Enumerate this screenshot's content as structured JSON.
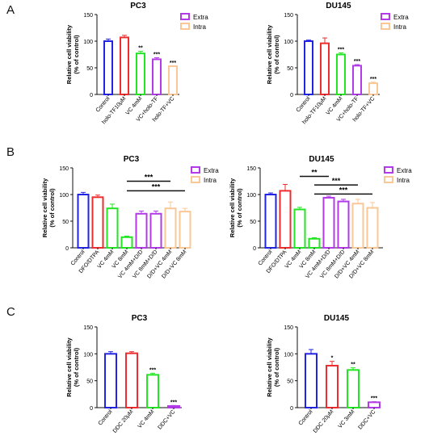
{
  "panels": [
    {
      "letter": "A"
    },
    {
      "letter": "B"
    },
    {
      "letter": "C"
    }
  ],
  "colors": {
    "blue": "#2323e6",
    "red": "#ee2e2e",
    "green": "#22e622",
    "purple": "#b23ae8",
    "orange": "#f9c896"
  },
  "chart_data": [
    {
      "type": "bar",
      "panel": "A",
      "title": "PC3",
      "ylabel": "Relative cell viability\n(% of control)",
      "xlabel": "",
      "ylim": [
        0,
        150
      ],
      "yticks": [
        0,
        50,
        100,
        150
      ],
      "categories": [
        "Control",
        "holo-TF10μM",
        "VC 4mM",
        "VC+holo-TF",
        "holo-TF+VC"
      ],
      "values": [
        100,
        107,
        77,
        66,
        53
      ],
      "errors": [
        4,
        4,
        4,
        3,
        0
      ],
      "bar_colors": [
        "blue",
        "red",
        "green",
        "purple",
        "orange"
      ],
      "significance": [
        "",
        "",
        "**",
        "***",
        "***"
      ],
      "legend": [
        {
          "label": "Extra",
          "color": "purple"
        },
        {
          "label": "Intra",
          "color": "orange"
        }
      ],
      "brackets": []
    },
    {
      "type": "bar",
      "panel": "A",
      "title": "DU145",
      "ylabel": "Relative cell viability\n(% of control)",
      "xlabel": "",
      "ylim": [
        0,
        150
      ],
      "yticks": [
        0,
        50,
        100,
        150
      ],
      "categories": [
        "Control",
        "holo-TF10μM",
        "VC 4mM",
        "VC+holo-TF",
        "holo-TF+VC"
      ],
      "values": [
        100,
        96,
        75,
        54,
        21
      ],
      "errors": [
        2,
        10,
        3,
        2,
        2
      ],
      "bar_colors": [
        "blue",
        "red",
        "green",
        "purple",
        "orange"
      ],
      "significance": [
        "",
        "",
        "***",
        "***",
        "***"
      ],
      "legend": [
        {
          "label": "Extra",
          "color": "purple"
        },
        {
          "label": "Intra",
          "color": "orange"
        }
      ],
      "brackets": []
    },
    {
      "type": "bar",
      "panel": "B",
      "title": "PC3",
      "ylabel": "Relative cell viability\n(% of control)",
      "xlabel": "",
      "ylim": [
        0,
        150
      ],
      "yticks": [
        0,
        50,
        100,
        150
      ],
      "categories": [
        "Control",
        "DFO/DTPA",
        "VC 4mM",
        "VC 8mM",
        "VC 4mM+D/D",
        "VC 8mM+D/D",
        "D/D+VC 4mM",
        "D/D+VC 8mM"
      ],
      "values": [
        100,
        95,
        74,
        20,
        64,
        64,
        74,
        68
      ],
      "errors": [
        4,
        4,
        8,
        2,
        5,
        5,
        12,
        6
      ],
      "bar_colors": [
        "blue",
        "red",
        "green",
        "green",
        "purple",
        "purple",
        "orange",
        "orange"
      ],
      "significance": [
        "",
        "",
        "",
        "",
        "",
        "",
        "",
        ""
      ],
      "legend": [
        {
          "label": "Extra",
          "color": "purple"
        },
        {
          "label": "Intra",
          "color": "orange"
        }
      ],
      "brackets": [
        {
          "from": 3,
          "to": 6,
          "y": 125,
          "label": "***"
        },
        {
          "from": 3,
          "to": 7,
          "y": 107,
          "label": "***"
        }
      ]
    },
    {
      "type": "bar",
      "panel": "B",
      "title": "DU145",
      "ylabel": "Relative cell viability\n(% of control)",
      "xlabel": "",
      "ylim": [
        0,
        150
      ],
      "yticks": [
        0,
        50,
        100,
        150
      ],
      "categories": [
        "Control",
        "DFO/DTPA",
        "VC 4mM",
        "VC 8mM",
        "VC 4mM+D/D",
        "VC 8mM+D/D",
        "D/D+VC 4mM",
        "D/D+VC 8mM"
      ],
      "values": [
        100,
        107,
        72,
        17,
        94,
        87,
        83,
        75
      ],
      "errors": [
        3,
        12,
        4,
        2,
        3,
        4,
        8,
        10
      ],
      "bar_colors": [
        "blue",
        "red",
        "green",
        "green",
        "purple",
        "purple",
        "orange",
        "orange"
      ],
      "significance": [
        "",
        "",
        "",
        "",
        "",
        "",
        "",
        ""
      ],
      "legend": [
        {
          "label": "Extra",
          "color": "purple"
        },
        {
          "label": "Intra",
          "color": "orange"
        }
      ],
      "brackets": [
        {
          "from": 2,
          "to": 4,
          "y": 134,
          "label": "**"
        },
        {
          "from": 3,
          "to": 6,
          "y": 118,
          "label": "***"
        },
        {
          "from": 3,
          "to": 7,
          "y": 101,
          "label": "***"
        }
      ]
    },
    {
      "type": "bar",
      "panel": "C",
      "title": "PC3",
      "ylabel": "Relative cell viability\n(% of control)",
      "xlabel": "",
      "ylim": [
        0,
        150
      ],
      "yticks": [
        0,
        50,
        100,
        150
      ],
      "categories": [
        "Control",
        "DDC 20μM",
        "VC 4mM",
        "DDC+VC"
      ],
      "values": [
        100,
        101,
        61,
        3
      ],
      "errors": [
        4,
        3,
        3,
        1
      ],
      "bar_colors": [
        "blue",
        "red",
        "green",
        "purple"
      ],
      "significance": [
        "",
        "",
        "***",
        "***"
      ],
      "legend": [],
      "brackets": []
    },
    {
      "type": "bar",
      "panel": "C",
      "title": "DU145",
      "ylabel": "Relative cell viability\n(% of control)",
      "xlabel": "",
      "ylim": [
        0,
        150
      ],
      "yticks": [
        0,
        50,
        100,
        150
      ],
      "categories": [
        "Control",
        "DDC 20μM",
        "VC 3mM",
        "DDC+VC"
      ],
      "values": [
        100,
        78,
        70,
        10
      ],
      "errors": [
        8,
        8,
        4,
        1
      ],
      "bar_colors": [
        "blue",
        "red",
        "green",
        "purple"
      ],
      "significance": [
        "",
        "*",
        "**",
        "***"
      ],
      "legend": [],
      "brackets": []
    }
  ]
}
